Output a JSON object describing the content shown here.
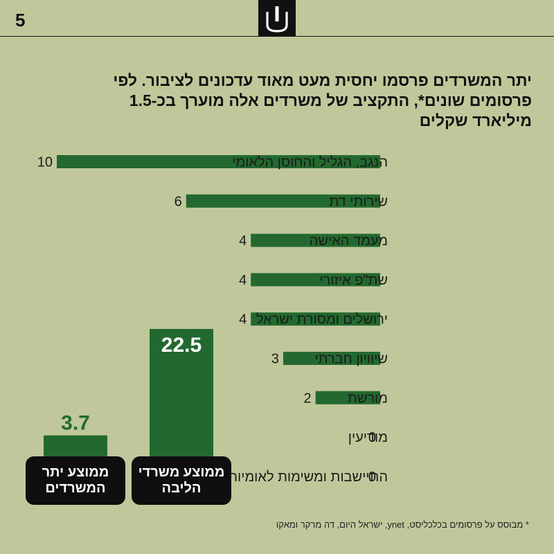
{
  "page": {
    "number": "5"
  },
  "title": "יתר המשרדים פרסמו יחסית מעט מאוד עדכונים לציבור. לפי פרסומים שונים*, התקציב של משרדים אלה מוערך בכ-1.5 מיליארד שקלים",
  "footnote": "* מבוסס על פרסומים בכלכליסט, ynet, ישראל היום, דה מרקר ומאקו",
  "colors": {
    "background": "#c0c89b",
    "bar": "#23692f",
    "dark": "#0f0f0f"
  },
  "logo_icon": "publisher-logo-icon",
  "chart_data": [
    {
      "type": "bar",
      "orientation": "horizontal",
      "categories": [
        "הנגב, הגליל והחוסן הלאומי",
        "שירותי דת",
        "מעמד האישה",
        "שת\"פ איזורי",
        "ירושלים ומסורת ישראל",
        "שיוויון חברתי",
        "מורשת",
        "מודיעין",
        "התיישבות ומשימות לאומיות"
      ],
      "values": [
        10,
        6,
        4,
        4,
        4,
        3,
        2,
        0,
        0
      ],
      "value_labels": [
        "10",
        "6",
        "4",
        "4",
        "4",
        "3",
        "2",
        "0",
        "0"
      ],
      "xlim": [
        0,
        10
      ]
    },
    {
      "type": "bar",
      "categories": [
        "ממוצע יתר המשרדים",
        "ממוצע משרדי הליבה"
      ],
      "values": [
        3.7,
        22.5
      ],
      "value_labels": [
        "3.7",
        "22.5"
      ],
      "ylim": [
        0,
        22.5
      ]
    }
  ]
}
